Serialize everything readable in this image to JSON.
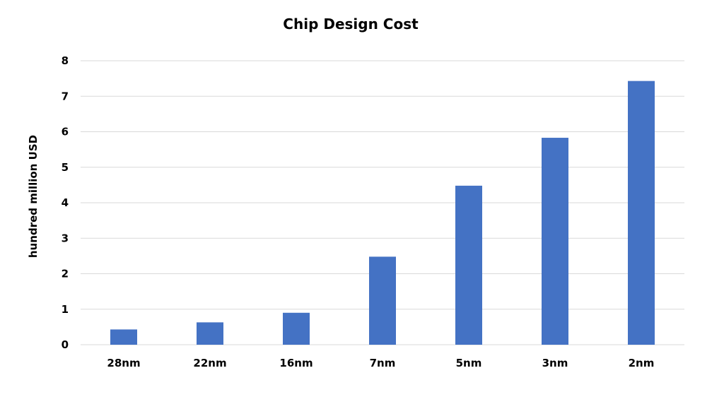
{
  "chart_data": {
    "type": "bar",
    "title": "Chip Design Cost",
    "xlabel": "",
    "ylabel": "hundred million USD",
    "categories": [
      "28nm",
      "22nm",
      "16nm",
      "7nm",
      "5nm",
      "3nm",
      "2nm"
    ],
    "values": [
      0.43,
      0.63,
      0.9,
      2.48,
      4.48,
      5.83,
      7.43
    ],
    "ylim": [
      0,
      8
    ],
    "yticks": [
      "0",
      "1",
      "2",
      "3",
      "4",
      "5",
      "6",
      "7",
      "8"
    ],
    "grid": true,
    "legend": "none",
    "bar_color": "#4472C4",
    "grid_color": "#D9D9D9"
  }
}
